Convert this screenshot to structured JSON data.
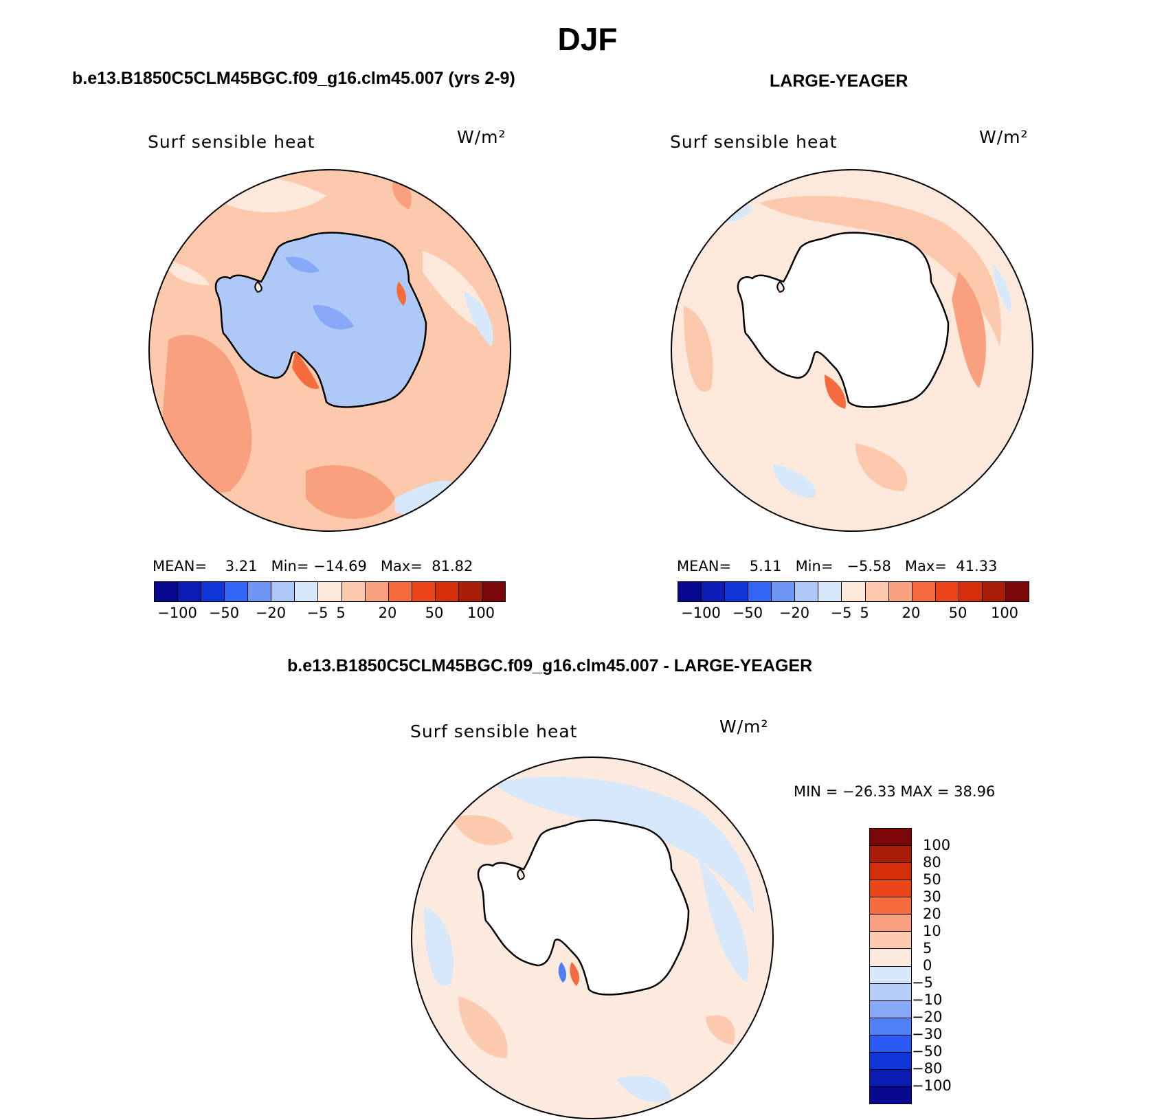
{
  "title": "DJF",
  "panels": [
    {
      "run_title": "b.e13.B1850C5CLM45BGC.f09_g16.clm45.007 (yrs 2-9)",
      "label": "Surf sensible heat",
      "units": "W/m²",
      "stats": {
        "mean_label": "MEAN=",
        "mean": "3.21",
        "min_label": "Min=",
        "min": "−14.69",
        "max_label": "Max=",
        "max": "81.82"
      },
      "colorbar": {
        "ticks": [
          "−100",
          "−50",
          "−20",
          "−5",
          "5",
          "20",
          "50",
          "100"
        ]
      }
    },
    {
      "run_title": "LARGE-YEAGER",
      "label": "Surf sensible heat",
      "units": "W/m²",
      "stats": {
        "mean_label": "MEAN=",
        "mean": "5.11",
        "min_label": "Min=",
        "min": "−5.58",
        "max_label": "Max=",
        "max": "41.33"
      },
      "colorbar": {
        "ticks": [
          "−100",
          "−50",
          "−20",
          "−5",
          "5",
          "20",
          "50",
          "100"
        ]
      }
    },
    {
      "run_title": "b.e13.B1850C5CLM45BGC.f09_g16.clm45.007 - LARGE-YEAGER",
      "label": "Surf sensible heat",
      "units": "W/m²",
      "stats": {
        "text": "MIN = −26.33 MAX =   38.96"
      },
      "colorbar": {
        "ticks": [
          "100",
          "80",
          "50",
          "30",
          "20",
          "10",
          "5",
          "0",
          "−5",
          "−10",
          "−20",
          "−30",
          "−50",
          "−80",
          "−100"
        ]
      }
    }
  ],
  "colors": {
    "abs_scale": [
      "#08088e",
      "#0a1cb4",
      "#0f36d8",
      "#3264f5",
      "#6e96f5",
      "#aec8f8",
      "#d6e8fa",
      "#fde9dc",
      "#fcc9ad",
      "#f9a07e",
      "#f46b3e",
      "#ea4418",
      "#d42e0a",
      "#a81e08",
      "#7a0808"
    ],
    "diff_scale": [
      "#08088e",
      "#0a1cb4",
      "#0f36d8",
      "#2a5af5",
      "#4f80f5",
      "#86a8f6",
      "#b6cdf8",
      "#d6e8fa",
      "#fdeadf",
      "#fccaaf",
      "#f9a07e",
      "#f46b3e",
      "#ea4418",
      "#d42e0a",
      "#a81e08",
      "#7a0808"
    ],
    "ocean_low": "#fde9dc",
    "ocean_mid": "#fcc9ad",
    "ocean_high": "#f9a07e",
    "ocean_neg": "#d6e8fa",
    "land_ice": "#aec8f8",
    "land_ice_dark": "#86a8f6"
  }
}
